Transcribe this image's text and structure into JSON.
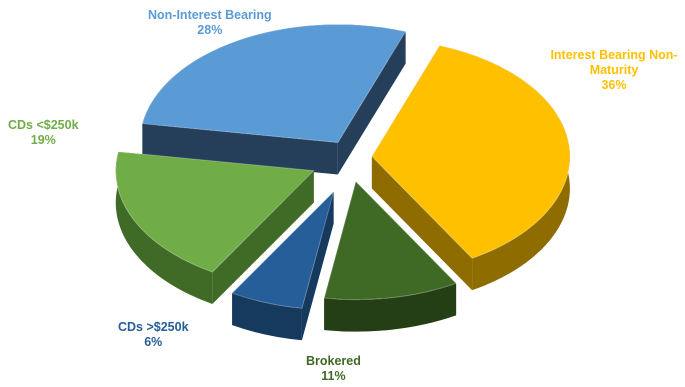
{
  "chart_data": {
    "type": "pie",
    "style": "3d-exploded",
    "slices": [
      {
        "label": "Interest Bearing Non-\nMaturity",
        "value": 36,
        "value_label": "36%",
        "color": "#ffc000",
        "side_color": "#8e6c00"
      },
      {
        "label": "Brokered",
        "value": 11,
        "value_label": "11%",
        "color": "#3f6a25",
        "side_color": "#243f15"
      },
      {
        "label": "CDs >$250k",
        "value": 6,
        "value_label": "6%",
        "color": "#255e99",
        "side_color": "#16395e"
      },
      {
        "label": "CDs <$250k",
        "value": 19,
        "value_label": "19%",
        "color": "#70ad47",
        "side_color": "#3f6b26"
      },
      {
        "label": "Non-Interest Bearing",
        "value": 28,
        "value_label": "28%",
        "color": "#5b9bd5",
        "side_color": "#253f5b"
      }
    ],
    "label_colors": {
      "Interest Bearing Non-\nMaturity": "#ffc000",
      "Brokered": "#3f6a25",
      "CDs >$250k": "#255e99",
      "CDs <$250k": "#70ad47",
      "Non-Interest Bearing": "#5b9bd5"
    }
  }
}
